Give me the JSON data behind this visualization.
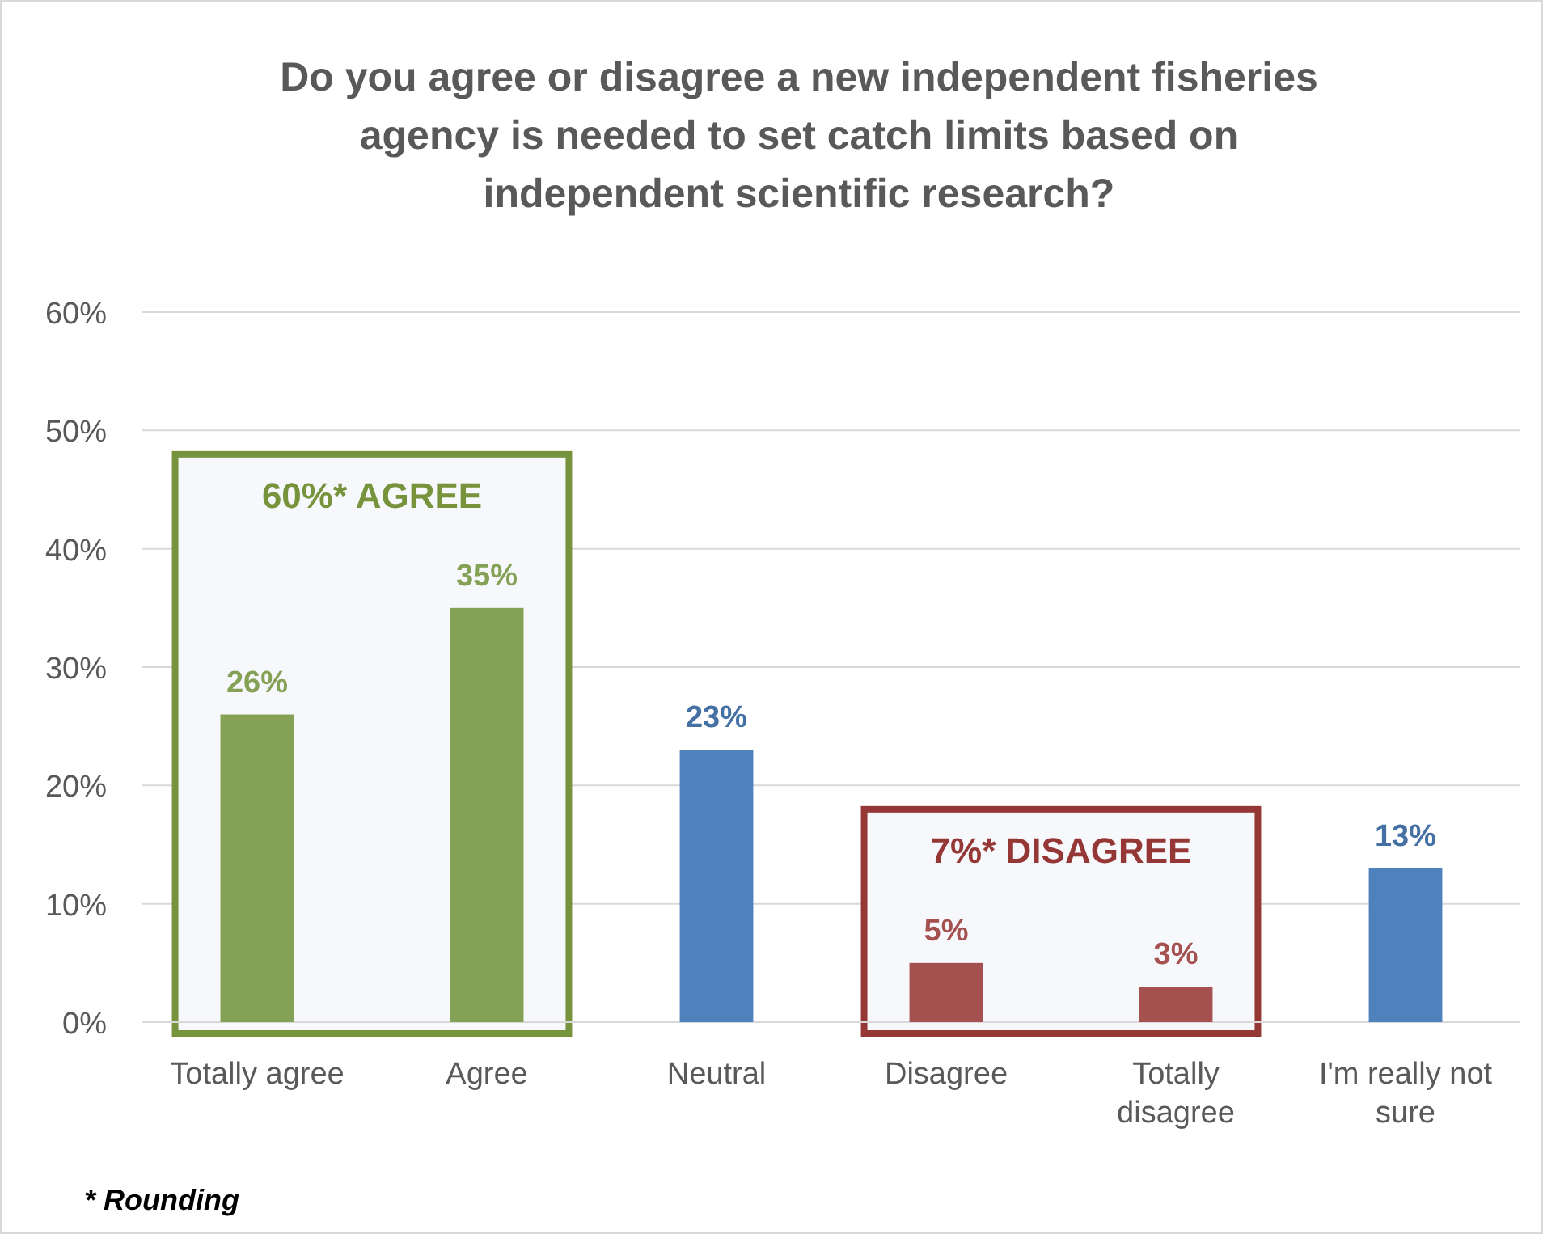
{
  "chart_data": {
    "type": "bar",
    "title": "Do you agree or disagree a new independent fisheries agency is needed to set catch limits based on independent scientific research?",
    "categories": [
      "Totally agree",
      "Agree",
      "Neutral",
      "Disagree",
      "Totally disagree",
      "I'm really not sure"
    ],
    "values": [
      26,
      35,
      23,
      5,
      3,
      13
    ],
    "colors": [
      "#85a155",
      "#85a155",
      "#4f81bd",
      "#a5514f",
      "#a5514f",
      "#4f81bd"
    ],
    "value_labels": [
      "26%",
      "35%",
      "23%",
      "5%",
      "3%",
      "13%"
    ],
    "ylim": [
      0,
      60
    ],
    "yticks": [
      {
        "value": 0,
        "label": "0%"
      },
      {
        "value": 10,
        "label": "10%"
      },
      {
        "value": 20,
        "label": "20%"
      },
      {
        "value": 30,
        "label": "30%"
      },
      {
        "value": 40,
        "label": "40%"
      },
      {
        "value": 50,
        "label": "50%"
      },
      {
        "value": 60,
        "label": "60%"
      }
    ],
    "grid": "y",
    "annotations": [
      "60%* AGREE",
      "7%* DISAGREE",
      "* Rounding"
    ]
  }
}
